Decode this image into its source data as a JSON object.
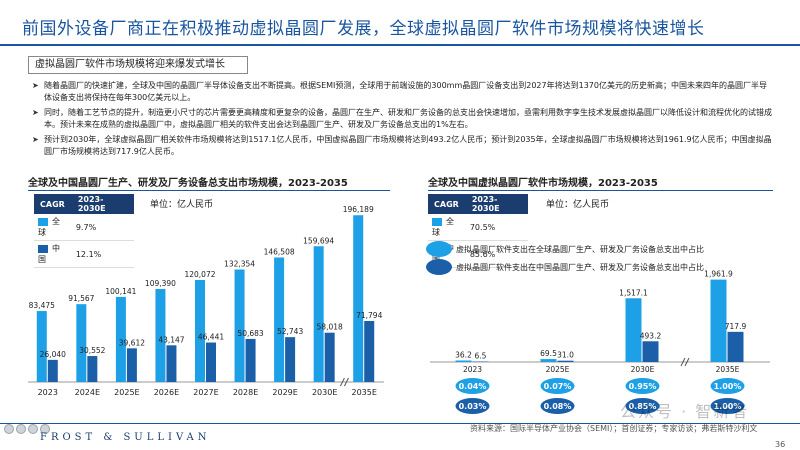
{
  "title": "前国外设备厂商正在积极推动虚拟晶圆厂发展，全球虚拟晶圆厂软件市场规模将快速增长",
  "subhead": "虚拟晶圆厂软件市场规模将迎来爆发式增长",
  "bullets": [
    "随着晶圆厂的快速扩建，全球及中国的晶圆厂半导体设备支出不断提高。根据SEMI预测，全球用于前端设施的300mm晶圆厂设备支出到2027年将达到1370亿美元的历史新高；中国未来四年的晶圆厂半导体设备支出将保持在每年300亿美元以上。",
    "同时，随着工艺节点的提升，制造更小尺寸的芯片需要更高精度和更复杂的设备，晶圆厂在生产、研发和厂务设备的总支出会快速增加，亟需利用数字孪生技术发展虚拟晶圆厂以降低设计和流程优化的试错成本。预计未来在成熟的虚拟晶圆厂中，虚拟晶圆厂相关的软件支出会达到晶圆厂生产、研发及厂务设备总支出的1%左右。",
    "预计到2030年，全球虚拟晶圆厂相关软件市场规模将达到1517.1亿人民币，中国虚拟晶圆厂市场规模将达到493.2亿人民币；预计到2035年，全球虚拟晶圆厂市场规模将达到1961.9亿人民币；中国虚拟晶圆厂市场规模将达到717.9亿人民币。"
  ],
  "colors": {
    "global": "#1ea0e6",
    "china": "#1a5fa8",
    "accent": "#1a56a0"
  },
  "left_panel": {
    "title": "全球及中国晶圆厂生产、研发及厂务设备总支出市场规模，2023-2035",
    "cagr_header": [
      "CAGR",
      "2023-2030E"
    ],
    "cagr_rows": [
      {
        "name": "全球",
        "value": "9.7%"
      },
      {
        "name": "中国",
        "value": "12.1%"
      }
    ],
    "unit": "单位：亿人民币"
  },
  "right_panel": {
    "title": "全球及中国虚拟晶圆厂软件市场规模，2023-2035",
    "cagr_header": [
      "CAGR",
      "2023-2030E"
    ],
    "cagr_rows": [
      {
        "name": "全球",
        "value": "70.5%"
      },
      {
        "name": "中国",
        "value": "85.6%"
      }
    ],
    "unit": "单位：亿人民币",
    "legend": [
      "虚拟晶圆厂软件支出在全球晶圆厂生产、研发及厂务设备总支出中占比",
      "虚拟晶圆厂软件支出在中国晶圆厂生产、研发及厂务设备总支出中占比"
    ]
  },
  "chart_data": [
    {
      "type": "bar",
      "title": "全球及中国晶圆厂生产、研发及厂务设备总支出市场规模，2023-2035",
      "ylabel": "单位：亿人民币",
      "categories": [
        "2023",
        "2024E",
        "2025E",
        "2026E",
        "2027E",
        "2028E",
        "2029E",
        "2030E",
        "2035E"
      ],
      "series": [
        {
          "name": "全球",
          "values": [
            83475,
            91567,
            100141,
            109390,
            120072,
            132354,
            146508,
            159694,
            196189
          ],
          "labels": [
            "83,475",
            "91,567",
            "100,141",
            "109,390",
            "120,072",
            "132,354",
            "146,508",
            "159,694",
            "196,189"
          ]
        },
        {
          "name": "中国",
          "values": [
            26040,
            30552,
            39612,
            43147,
            46441,
            50683,
            52743,
            58018,
            71794
          ],
          "labels": [
            "26,040",
            "30,552",
            "39,612",
            "43,147",
            "46,441",
            "50,683",
            "52,743",
            "58,018",
            "71,794"
          ]
        }
      ],
      "grid": false,
      "legend": "top-left"
    },
    {
      "type": "bar",
      "title": "全球及中国虚拟晶圆厂软件市场规模，2023-2035",
      "ylabel": "单位：亿人民币",
      "categories": [
        "2023",
        "2025E",
        "2030E",
        "2035E"
      ],
      "series": [
        {
          "name": "全球",
          "values": [
            36.2,
            69.5,
            1517.1,
            1961.9
          ],
          "labels": [
            "36.2",
            "69.5",
            "1,517.1",
            "1,961.9"
          ],
          "share_labels": [
            "0.04%",
            "0.07%",
            "0.95%",
            "1.00%"
          ]
        },
        {
          "name": "中国",
          "values": [
            6.5,
            31.0,
            493.2,
            717.9
          ],
          "labels": [
            "6.5",
            "31.0",
            "493.2",
            "717.9"
          ],
          "share_labels": [
            "0.03%",
            "0.08%",
            "0.85%",
            "1.00%"
          ]
        }
      ],
      "grid": false,
      "legend": "top-left"
    }
  ],
  "footer": {
    "brand": "FROST & SULLIVAN",
    "source": "资料来源：国际半导体产业协会（SEMI）；首创证券；专家访谈；弗若斯特沙利文",
    "page": "36",
    "watermark": "公众号 · 智新者"
  }
}
